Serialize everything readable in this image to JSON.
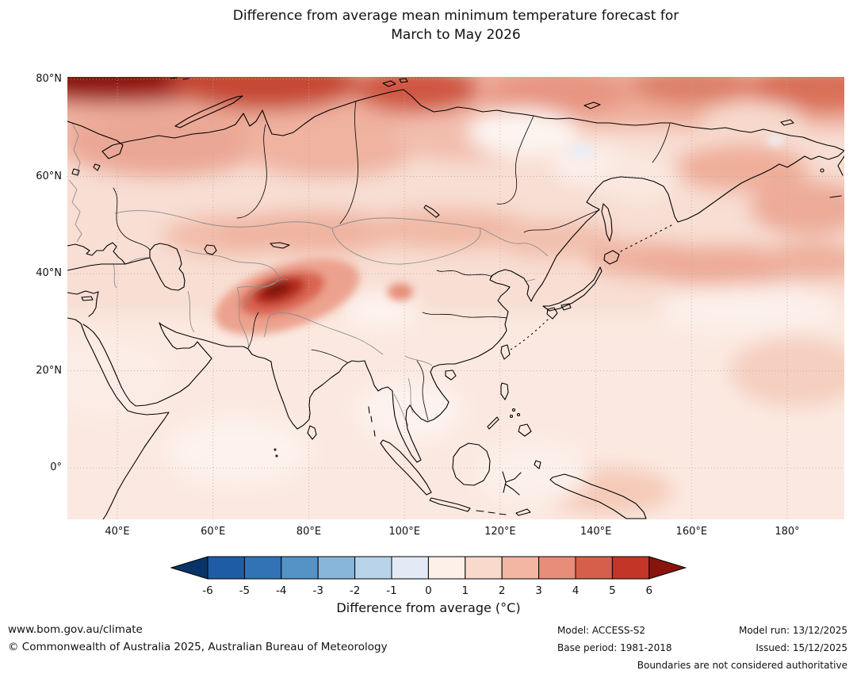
{
  "title": {
    "line1": "Difference from average mean minimum temperature forecast for",
    "line2": "March to May 2026"
  },
  "map": {
    "lat_labels": [
      {
        "value": 80,
        "label": "80°N"
      },
      {
        "value": 60,
        "label": "60°N"
      },
      {
        "value": 40,
        "label": "40°N"
      },
      {
        "value": 20,
        "label": "20°N"
      },
      {
        "value": 0,
        "label": "0°"
      }
    ],
    "lon_labels": [
      {
        "value": 40,
        "label": "40°E"
      },
      {
        "value": 60,
        "label": "60°E"
      },
      {
        "value": 80,
        "label": "80°E"
      },
      {
        "value": 100,
        "label": "100°E"
      },
      {
        "value": 120,
        "label": "120°E"
      },
      {
        "value": 140,
        "label": "140°E"
      },
      {
        "value": 160,
        "label": "160°E"
      },
      {
        "value": 180,
        "label": "180°"
      }
    ]
  },
  "colorbar": {
    "label": "Difference from average (°C)",
    "ticks": [
      "-6",
      "-5",
      "-4",
      "-3",
      "-2",
      "-1",
      "0",
      "1",
      "2",
      "3",
      "4",
      "5",
      "6"
    ],
    "segment_colors": [
      "#1e5ca6",
      "#3173b5",
      "#5592c6",
      "#88b6da",
      "#b9d4ea",
      "#e2ebf5",
      "#fdf0e9",
      "#f8d9cb",
      "#f2b6a3",
      "#e78d79",
      "#d65f4c",
      "#c23527"
    ],
    "arrow_left_color": "#0a3468",
    "arrow_right_color": "#8a130d"
  },
  "footer": {
    "website": "www.bom.gov.au/climate",
    "copyright": "© Commonwealth of Australia 2025, Australian Bureau of Meteorology",
    "model": "Model: ACCESS-S2",
    "model_run": "Model run: 13/12/2025",
    "base_period": "Base period: 1981-2018",
    "issued": "Issued: 15/12/2025",
    "boundaries": "Boundaries are not considered authoritative"
  },
  "chart_data": {
    "type": "heatmap",
    "subtype": "filled-contour-anomaly-map",
    "title": "Difference from average mean minimum temperature forecast for March to May 2026",
    "variable": "mean minimum temperature anomaly",
    "units": "°C",
    "region": "Asia and surrounding oceans",
    "lon_range_deg_east": [
      30,
      192
    ],
    "lat_range_deg_north": [
      -11,
      80.5
    ],
    "grid_lon_ticks": [
      40,
      60,
      80,
      100,
      120,
      140,
      160,
      180
    ],
    "grid_lat_ticks": [
      0,
      20,
      40,
      60,
      80
    ],
    "colorbar_levels": [
      -6,
      -5,
      -4,
      -3,
      -2,
      -1,
      0,
      1,
      2,
      3,
      4,
      5,
      6
    ],
    "colorbar_label": "Difference from average (°C)",
    "extend": "both",
    "notable_features": [
      {
        "area": "High Arctic near 80°N, 30–70°E",
        "value": "+4 to +6 °C"
      },
      {
        "area": "Karakoram / western Himalaya (~36°N, 72°E)",
        "value": "+4 to +6 °C"
      },
      {
        "area": "Northern Siberian coastal band 70–80°N",
        "value": "+2 to +4 °C"
      },
      {
        "area": "European Russia 55–70°N",
        "value": "+2 to +3 °C"
      },
      {
        "area": "Kazakhstan–Mongolia–NE China belt 42–52°N",
        "value": "+2 to +3 °C"
      },
      {
        "area": "North Pacific 38–47°N east of Japan",
        "value": "+2 to +3 °C"
      },
      {
        "area": "Most remaining land and tropical ocean",
        "value": "+0.5 to +2 °C"
      },
      {
        "area": "Patches of eastern Siberia and subtropical west Pacific",
        "value": "0 to +1 °C"
      }
    ]
  }
}
